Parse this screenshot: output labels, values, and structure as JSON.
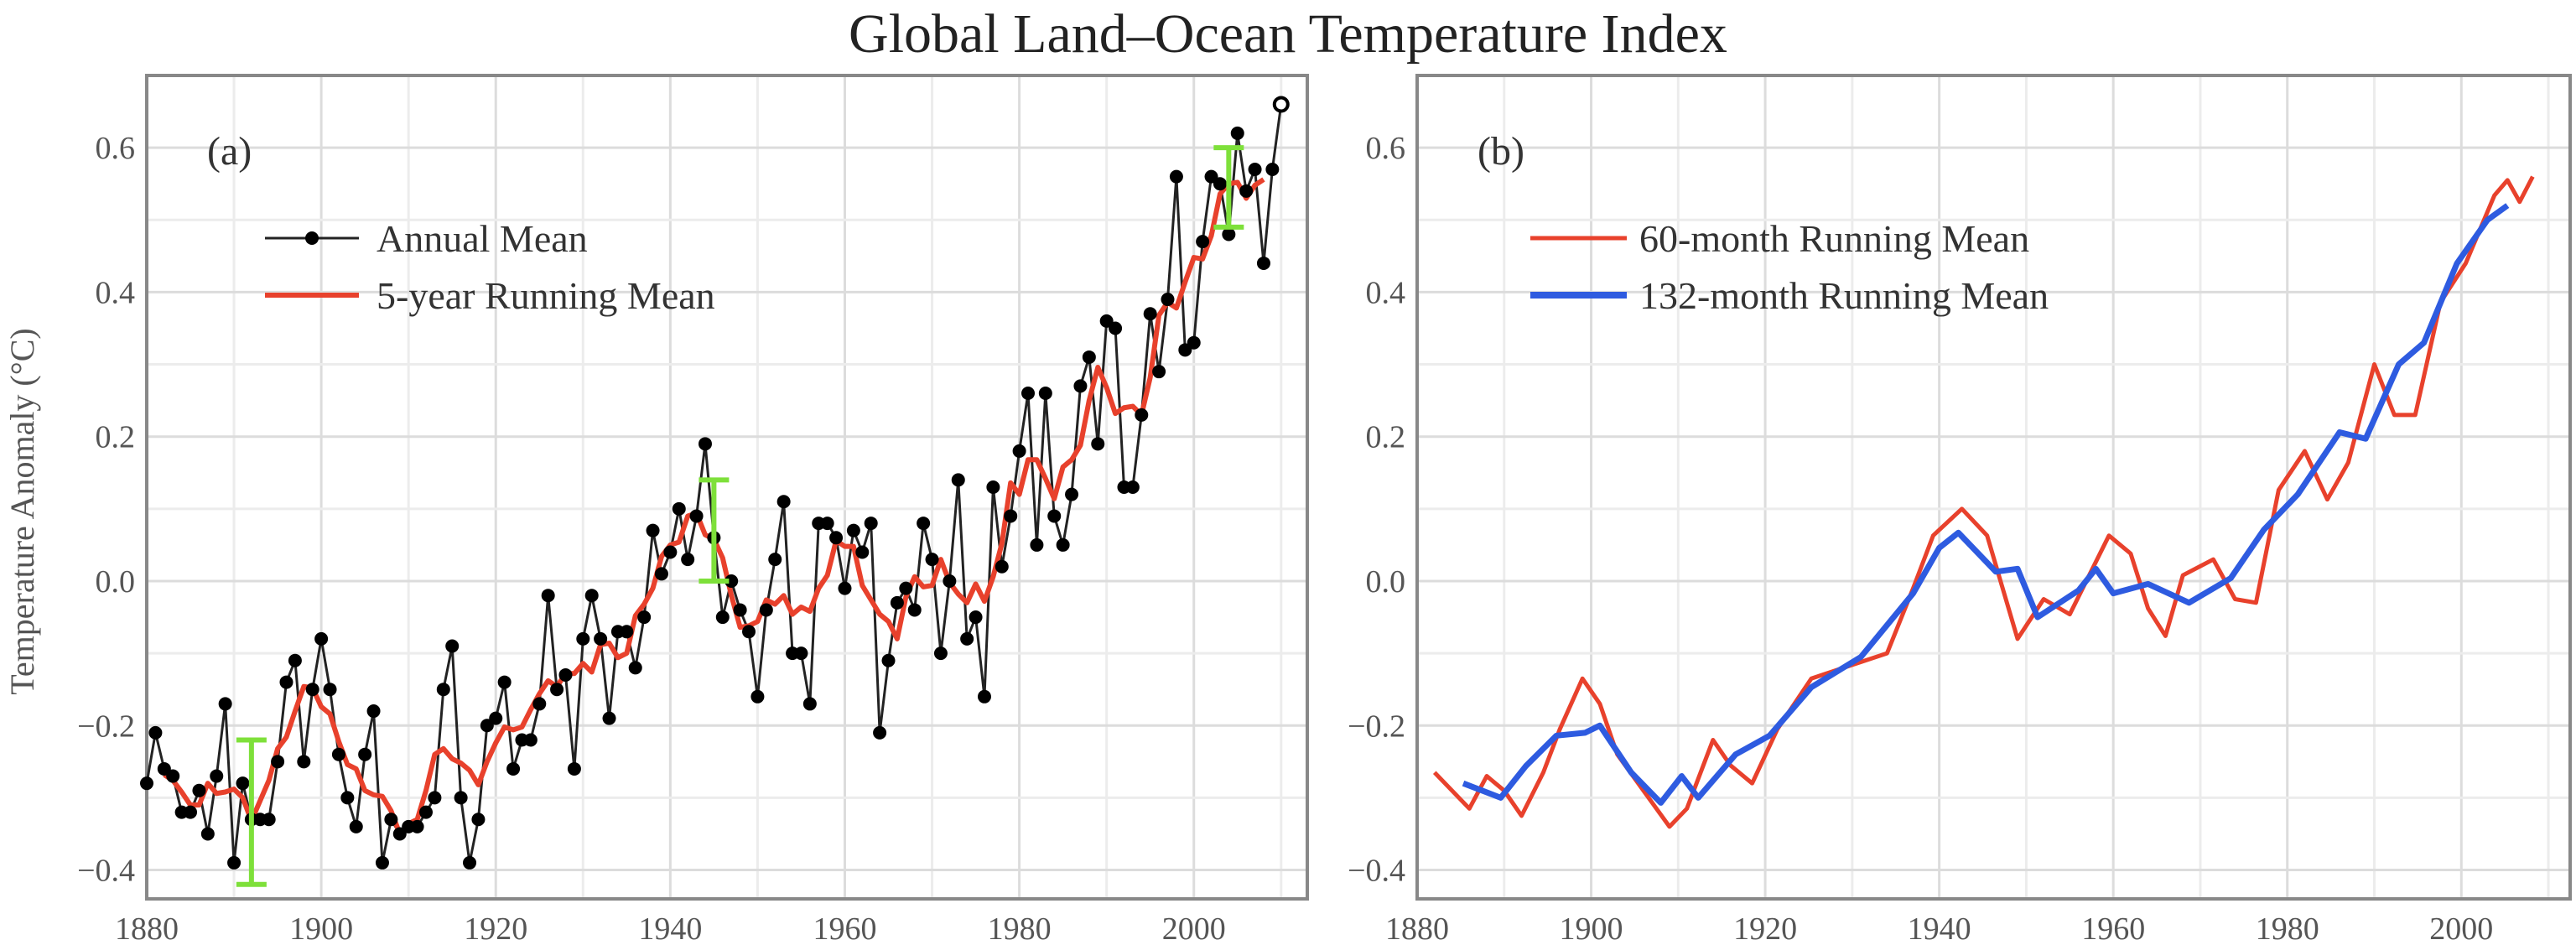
{
  "chart_data": [
    {
      "type": "line",
      "panel_label": "(a)",
      "title": "Global Land–Ocean Temperature Index",
      "xlabel": "",
      "ylabel": "Temperature Anomaly (°C)",
      "xlim": [
        1880,
        2013
      ],
      "ylim": [
        -0.44,
        0.7
      ],
      "xticks": [
        "1880",
        "1900",
        "1920",
        "1940",
        "1960",
        "1980",
        "2000"
      ],
      "yticks": [
        "-0.4",
        "-0.2",
        "0.0",
        "0.2",
        "0.4",
        "0.6"
      ],
      "grid": true,
      "legend_position": "top-left",
      "series": [
        {
          "name": "Annual Mean",
          "color": "#000000",
          "x_start": 1880,
          "values": [
            -0.28,
            -0.21,
            -0.26,
            -0.27,
            -0.32,
            -0.32,
            -0.29,
            -0.35,
            -0.27,
            -0.17,
            -0.39,
            -0.28,
            -0.33,
            -0.33,
            -0.33,
            -0.25,
            -0.14,
            -0.11,
            -0.25,
            -0.15,
            -0.08,
            -0.15,
            -0.24,
            -0.3,
            -0.34,
            -0.24,
            -0.18,
            -0.39,
            -0.33,
            -0.35,
            -0.34,
            -0.34,
            -0.32,
            -0.3,
            -0.15,
            -0.09,
            -0.3,
            -0.39,
            -0.33,
            -0.2,
            -0.19,
            -0.14,
            -0.26,
            -0.22,
            -0.22,
            -0.17,
            -0.02,
            -0.15,
            -0.13,
            -0.26,
            -0.08,
            -0.02,
            -0.08,
            -0.19,
            -0.07,
            -0.07,
            -0.12,
            -0.05,
            0.07,
            0.01,
            0.04,
            0.1,
            0.03,
            0.09,
            0.19,
            0.06,
            -0.05,
            0.0,
            -0.04,
            -0.07,
            -0.16,
            -0.04,
            0.03,
            0.11,
            -0.1,
            -0.1,
            -0.17,
            0.08,
            0.08,
            0.06,
            -0.01,
            0.07,
            0.04,
            0.08,
            -0.21,
            -0.11,
            -0.03,
            -0.01,
            -0.04,
            0.08,
            0.03,
            -0.1,
            0.0,
            0.14,
            -0.08,
            -0.05,
            -0.16,
            0.13,
            0.02,
            0.09,
            0.18,
            0.26,
            0.05,
            0.26,
            0.09,
            0.05,
            0.12,
            0.27,
            0.31,
            0.19,
            0.36,
            0.35,
            0.13,
            0.13,
            0.23,
            0.37,
            0.29,
            0.39,
            0.56,
            0.32,
            0.33,
            0.47,
            0.56,
            0.55,
            0.48,
            0.62,
            0.54,
            0.57,
            0.44,
            0.57,
            0.66
          ],
          "last_point_open": true
        },
        {
          "name": "5-year Running Mean",
          "color": "#e8412c",
          "window": 5,
          "derived_from": "Annual Mean"
        }
      ],
      "error_bars": [
        {
          "x": 1892,
          "low": -0.42,
          "high": -0.22,
          "color": "#7ee03a"
        },
        {
          "x": 1945,
          "low": 0.0,
          "high": 0.14,
          "color": "#7ee03a"
        },
        {
          "x": 2004,
          "low": 0.49,
          "high": 0.6,
          "color": "#7ee03a"
        }
      ]
    },
    {
      "type": "line",
      "panel_label": "(b)",
      "xlim": [
        1880,
        2012.5
      ],
      "ylim": [
        -0.44,
        0.7
      ],
      "xticks": [
        "1880",
        "1900",
        "1920",
        "1940",
        "1960",
        "1980",
        "2000"
      ],
      "yticks": [
        "-0.4",
        "-0.2",
        "0.0",
        "0.2",
        "0.4",
        "0.6"
      ],
      "grid": true,
      "legend_position": "top-left",
      "series": [
        {
          "name": "60-month Running Mean",
          "color": "#e8412c",
          "x": [
            1882,
            1886,
            1888,
            1890,
            1892,
            1894.5,
            1896.4,
            1899,
            1901,
            1903,
            1906,
            1909,
            1911,
            1914,
            1916,
            1918.5,
            1921.4,
            1925.3,
            1929,
            1934,
            1937,
            1939.3,
            1942.6,
            1945.5,
            1949,
            1952,
            1955,
            1959.5,
            1962,
            1964,
            1966,
            1968,
            1971.5,
            1974,
            1976.4,
            1979,
            1982,
            1984.6,
            1987,
            1990,
            1992.3,
            1994.7,
            1997.6,
            2000.5,
            2003.8,
            2005.3,
            2006.7,
            2008.2
          ],
          "y": [
            -0.265,
            -0.315,
            -0.27,
            -0.29,
            -0.325,
            -0.265,
            -0.205,
            -0.135,
            -0.17,
            -0.24,
            -0.29,
            -0.34,
            -0.315,
            -0.22,
            -0.255,
            -0.28,
            -0.205,
            -0.135,
            -0.12,
            -0.1,
            -0.01,
            0.063,
            0.1,
            0.063,
            -0.08,
            -0.025,
            -0.046,
            0.063,
            0.038,
            -0.038,
            -0.076,
            0.008,
            0.03,
            -0.025,
            -0.03,
            0.126,
            0.18,
            0.113,
            0.164,
            0.3,
            0.23,
            0.23,
            0.386,
            0.44,
            0.534,
            0.555,
            0.525,
            0.56
          ]
        },
        {
          "name": "132-month Running Mean",
          "color": "#2e5be0",
          "x": [
            1885.3,
            1889.6,
            1892.5,
            1896,
            1899.3,
            1901,
            1904.6,
            1908,
            1910.4,
            1912.3,
            1916.6,
            1920.5,
            1925.3,
            1931,
            1937,
            1940,
            1942.2,
            1946.5,
            1949,
            1951.3,
            1956,
            1958,
            1960,
            1964,
            1968.7,
            1973.5,
            1977.3,
            1981.2,
            1986,
            1989,
            1992.8,
            1995.7,
            1999.5,
            2003,
            2005.3
          ],
          "y": [
            -0.28,
            -0.3,
            -0.256,
            -0.214,
            -0.21,
            -0.2,
            -0.265,
            -0.307,
            -0.27,
            -0.3,
            -0.24,
            -0.214,
            -0.147,
            -0.105,
            -0.017,
            0.046,
            0.067,
            0.013,
            0.017,
            -0.05,
            -0.013,
            0.017,
            -0.017,
            -0.004,
            -0.03,
            0.004,
            0.071,
            0.12,
            0.206,
            0.197,
            0.3,
            0.33,
            0.44,
            0.5,
            0.52
          ]
        }
      ]
    }
  ]
}
